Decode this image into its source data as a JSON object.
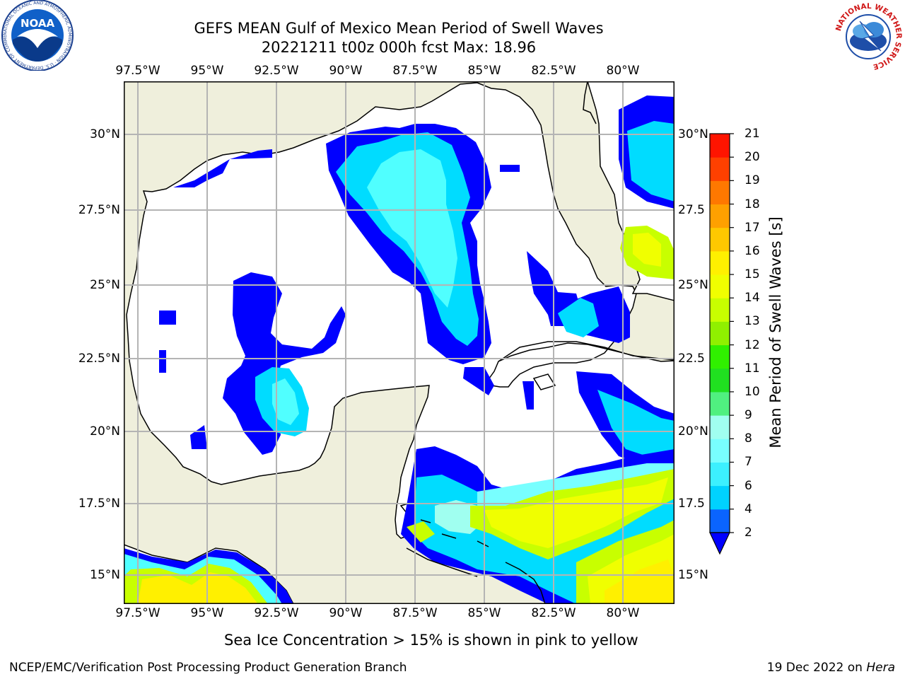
{
  "header": {
    "title": "GEFS MEAN Gulf of Mexico Mean Period of Swell Waves",
    "subtitle": "20221211 t00z 000h fcst   Max: 18.96"
  },
  "map": {
    "lon_labels": [
      "97.5°W",
      "95°W",
      "92.5°W",
      "90°W",
      "87.5°W",
      "85°W",
      "82.5°W",
      "80°W"
    ],
    "lat_labels_left": [
      "30°N",
      "27.5°N",
      "25°N",
      "22.5°N",
      "20°N",
      "17.5°N",
      "15°N"
    ],
    "lat_labels_right": [
      "30°N",
      "27.5",
      "25°N",
      "22.5",
      "20°N",
      "17.5",
      "15°N"
    ],
    "land_color": "#efefdc",
    "ocean_color": "#ffffff"
  },
  "colorbar": {
    "title": "Mean Period of Swell Waves [s]",
    "levels": [
      2,
      4,
      6,
      7,
      8,
      9,
      10,
      11,
      12,
      13,
      14,
      15,
      16,
      17,
      18,
      19,
      20,
      21
    ],
    "labels": [
      "2",
      "4",
      "6",
      "7",
      "8",
      "9",
      "10",
      "11",
      "12",
      "13",
      "14",
      "15",
      "16",
      "17",
      "18",
      "19",
      "20",
      "21"
    ],
    "colors": [
      "#0a64ff",
      "#00d2ff",
      "#3cf0ff",
      "#78ffff",
      "#a0fff0",
      "#50f080",
      "#20e020",
      "#30f000",
      "#90f000",
      "#c8ff00",
      "#f0ff00",
      "#fff000",
      "#ffc800",
      "#ffa000",
      "#ff7800",
      "#ff4000",
      "#ff1400"
    ],
    "underflow_color": "#0000ff"
  },
  "footer": {
    "note": "Sea Ice Concentration > 15% is shown in pink to yellow",
    "credit": "NCEP/EMC/Verification Post Processing Product Generation Branch",
    "date": "19 Dec 2022 on ",
    "host": "Hera"
  },
  "logos": {
    "noaa_text": "NOAA",
    "noaa_ring": "NATIONAL OCEANIC AND ATMOSPHERIC ADMINISTRATION · U.S. DEPARTMENT OF COMMERCE",
    "nws_ring": "NATIONAL WEATHER SERVICE"
  }
}
